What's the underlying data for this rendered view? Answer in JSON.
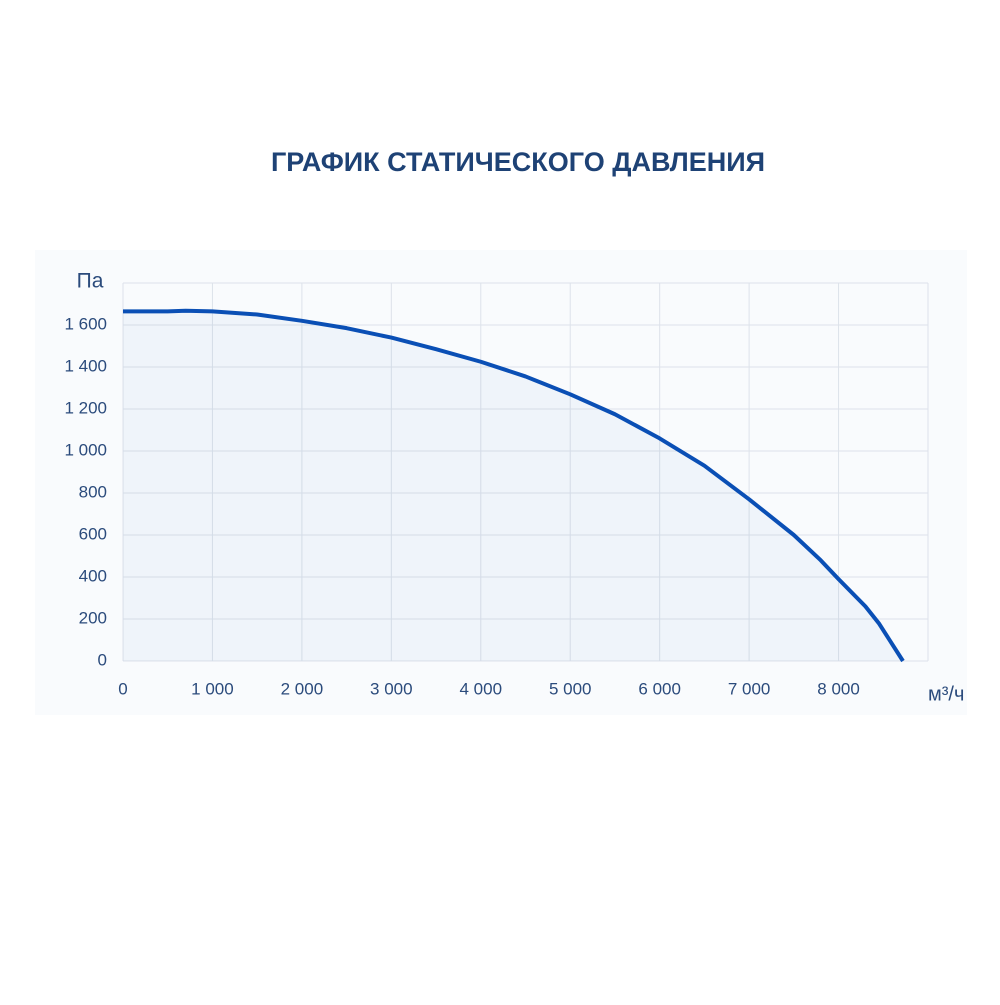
{
  "chart_data": {
    "type": "line",
    "title": "ГРАФИК СТАТИЧЕСКОГО ДАВЛЕНИЯ",
    "y_label": "Па",
    "x_label": "м³/ч",
    "x": [
      0,
      500,
      700,
      1000,
      1500,
      2000,
      2500,
      3000,
      3500,
      4000,
      4500,
      5000,
      5500,
      6000,
      6500,
      7000,
      7500,
      7800,
      8000,
      8300,
      8450,
      8720
    ],
    "series": [
      {
        "color": "#0a4fb5",
        "values": [
          1665,
          1665,
          1668,
          1665,
          1650,
          1620,
          1585,
          1540,
          1485,
          1425,
          1355,
          1270,
          1175,
          1060,
          930,
          770,
          600,
          480,
          390,
          260,
          180,
          0
        ]
      }
    ],
    "xlim": [
      0,
      9000
    ],
    "xticks": [
      0,
      {
        "value": 1000,
        "label": "1 000"
      },
      {
        "value": 2000,
        "label": "2 000"
      },
      {
        "value": 3000,
        "label": "3 000"
      },
      {
        "value": 4000,
        "label": "4 000"
      },
      {
        "value": 5000,
        "label": "5 000"
      },
      {
        "value": 6000,
        "label": "6 000"
      },
      {
        "value": 7000,
        "label": "7 000"
      },
      {
        "value": 8000,
        "label": "8 000"
      }
    ],
    "ylim": [
      0,
      1800
    ],
    "yticks": [
      0,
      200,
      400,
      600,
      800,
      {
        "value": 1000,
        "label": "1 000"
      },
      {
        "value": 1200,
        "label": "1 200"
      },
      {
        "value": 1400,
        "label": "1 400"
      },
      {
        "value": 1600,
        "label": "1 600"
      }
    ],
    "grid": true
  }
}
